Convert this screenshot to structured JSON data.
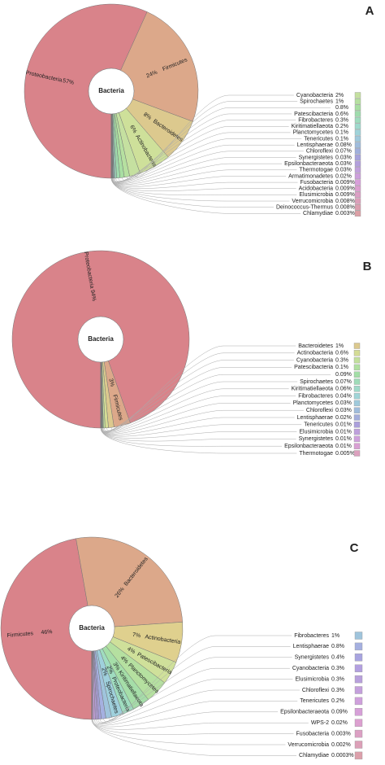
{
  "chart_data": [
    {
      "type": "pie",
      "panel": "A",
      "center_label": "Bacteria",
      "categories": [
        "Proteobacteria",
        "Firmicutes",
        "Bacteroidetes",
        "Actinobacteria"
      ],
      "values": [
        57,
        24,
        8,
        6
      ],
      "value_labels": [
        "57%",
        "24%",
        "8%",
        "6%"
      ],
      "colors": [
        "#d9838a",
        "#dca88a",
        "#dcc98e",
        "#cee09a"
      ],
      "legend": {
        "categories": [
          "Cyanobacteria",
          "Spirochaetes",
          null,
          "Patescibacteria",
          "Fibrobacteres",
          "Kiritimatiellaeota",
          "Planctomycetes",
          "Tenericutes",
          "Lentisphaerae",
          "Chloroflexi",
          "Synergistetes",
          "Epsilonbacteraeota",
          "Thermotogae",
          "Armatimonadetes",
          "Fusobacteria",
          "Acidobacteria",
          "Elusimicrobia",
          "Verrucomicrobia",
          "Deinococcus-Thermus",
          "Chlamydiae"
        ],
        "values": [
          2,
          1,
          0.8,
          0.6,
          0.3,
          0.2,
          0.1,
          0.1,
          0.08,
          0.07,
          0.03,
          0.03,
          0.03,
          0.02,
          0.009,
          0.009,
          0.009,
          0.008,
          0.008,
          0.003
        ],
        "value_labels": [
          "2%",
          "1%",
          "0.8%",
          "0.6%",
          "0.3%",
          "0.2%",
          "0.1%",
          "0.1%",
          "0.08%",
          "0.07%",
          "0.03%",
          "0.03%",
          "0.03%",
          "0.02%",
          "0.009%",
          "0.009%",
          "0.009%",
          "0.008%",
          "0.008%",
          "0.003%"
        ],
        "colors": [
          "#c5e0a0",
          "#b6e0a0",
          "#a8dea2",
          "#9fdcad",
          "#9fdcbe",
          "#9fd9cd",
          "#9fd3d9",
          "#9fc9dc",
          "#9fbcdc",
          "#a0afdc",
          "#a6a2dc",
          "#b29fdc",
          "#c09fdc",
          "#cd9fdc",
          "#d89fda",
          "#dc9fd0",
          "#dc9fc5",
          "#dc9fba",
          "#dc9fb0",
          "#dca0a6"
        ]
      }
    },
    {
      "type": "pie",
      "panel": "B",
      "center_label": "Bacteria",
      "categories": [
        "Proteobacteria",
        "Firmicutes"
      ],
      "values": [
        94,
        3
      ],
      "value_labels": [
        "94%",
        "3%"
      ],
      "colors": [
        "#d9838a",
        "#dca88a"
      ],
      "legend": {
        "categories": [
          "Bacteroidetes",
          "Actinobacteria",
          "Cyanobacteria",
          "Patescibacteria",
          null,
          "Spirochaetes",
          "Kiritimatiellaeota",
          "Fibrobacteres",
          "Planctomycetes",
          "Chloroflexi",
          "Lentisphaerae",
          "Tenericutes",
          "Elusimicrobia",
          "Synergistetes",
          "Epsilonbacteraeota",
          "Thermotogae"
        ],
        "values": [
          1,
          0.6,
          0.3,
          0.1,
          0.09,
          0.07,
          0.06,
          0.04,
          0.03,
          0.03,
          0.02,
          0.01,
          0.01,
          0.01,
          0.01,
          0.005
        ],
        "value_labels": [
          "1%",
          "0.6%",
          "0.3%",
          "0.1%",
          "0.09%",
          "0.07%",
          "0.06%",
          "0.04%",
          "0.03%",
          "0.03%",
          "0.02%",
          "0.01%",
          "0.01%",
          "0.01%",
          "0.01%",
          "0.005%"
        ],
        "colors": [
          "#dcc98e",
          "#d4dc95",
          "#c2e09c",
          "#b0e0a0",
          "#a2dea6",
          "#9fdcb8",
          "#9fdac9",
          "#9fd5d8",
          "#9fcadc",
          "#9fbcdc",
          "#a3aedc",
          "#ab9fdc",
          "#bea0dc",
          "#cea0dc",
          "#d9a0d4",
          "#dca0be"
        ]
      }
    },
    {
      "type": "pie",
      "panel": "C",
      "center_label": "Bacteria",
      "categories": [
        "Firmicutes",
        "Bacteroidetes",
        "Actinobacteria",
        "Patescibacteria",
        "Planctomycetes",
        "Kiritimatiellaeota",
        "Proteobacteria",
        "Spirochaetes"
      ],
      "values": [
        46,
        26,
        7,
        4,
        4,
        3,
        2,
        2
      ],
      "value_labels": [
        "46%",
        "26%",
        "7%",
        "4%",
        "4%",
        "3%",
        "2%",
        "2%"
      ],
      "colors": [
        "#d9838a",
        "#dca88a",
        "#dfd08e",
        "#cfe09a",
        "#b5e0a0",
        "#a5dea8",
        "#9fdcbf",
        "#9fd0dc"
      ],
      "legend": {
        "categories": [
          "Fibrobacteres",
          "Lentisphaerae",
          "Synergistetes",
          "Cyanobacteria",
          "Elusimicrobia",
          "Chloroflexi",
          "Tenericutes",
          "Epsilonbacteraeota",
          "WPS-2",
          "Fusobacteria",
          "Verrucomicrobia",
          "Chlamydiae"
        ],
        "values": [
          1,
          0.8,
          0.4,
          0.3,
          0.3,
          0.3,
          0.2,
          0.09,
          0.02,
          0.003,
          0.002,
          0.0003
        ],
        "value_labels": [
          "1%",
          "0.8%",
          "0.4%",
          "0.3%",
          "0.3%",
          "0.3%",
          "0.2%",
          "0.09%",
          "0.02%",
          "0.003%",
          "0.002%",
          "0.0003%"
        ],
        "colors": [
          "#9fc4dc",
          "#a5b0e0",
          "#a8a4e0",
          "#b3a0e0",
          "#b8a0dc",
          "#c4a0dc",
          "#cfa0dc",
          "#d6a0d8",
          "#dca0d0",
          "#dca0c4",
          "#dca0b8",
          "#dca0ab"
        ]
      }
    }
  ]
}
